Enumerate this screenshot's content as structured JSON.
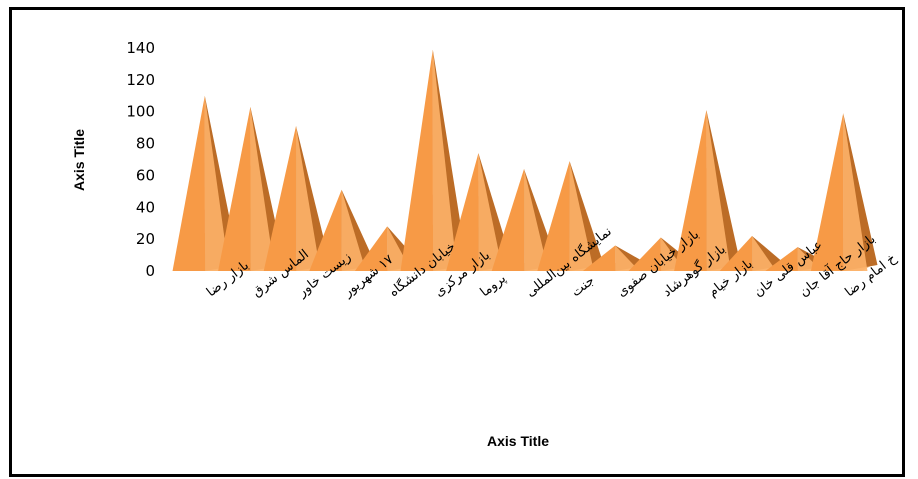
{
  "chart_data": {
    "type": "bar",
    "subtype": "3d-pyramid",
    "title": "",
    "xlabel": "Axis Title",
    "ylabel": "Axis Title",
    "ylim": [
      0,
      140
    ],
    "yticks": [
      0,
      20,
      40,
      60,
      80,
      100,
      120,
      140
    ],
    "grid": false,
    "legend": "none",
    "categories": [
      "بازار رضا",
      "الماس شرق",
      "زیست خاور",
      "۱۷ شهریور",
      "خیابان دانشگاه",
      "بازار مرکزی",
      "پروما",
      "نمایشگاه بین‌المللی",
      "جنت",
      "بازار خیابان صفوی",
      "بازار گوهرشاد",
      "بازار خیام",
      "عباس قلی خان",
      "بازار حاج آقا جان",
      "خ امام رضا"
    ],
    "values": [
      110,
      103,
      91,
      51,
      28,
      139,
      74,
      64,
      69,
      16,
      21,
      101,
      22,
      15,
      99
    ],
    "colors": {
      "light": "#fdb369",
      "mid": "#f79a46",
      "dark": "#bc6c26",
      "floor": "#f2c08e"
    }
  }
}
